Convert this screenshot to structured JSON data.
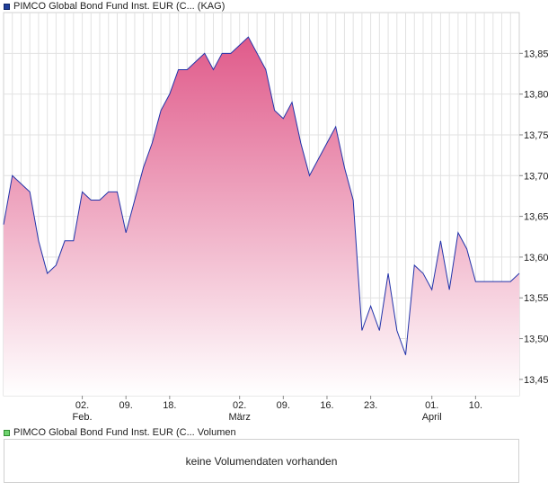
{
  "legend": {
    "price_label": "PIMCO Global Bond Fund Inst. EUR (C... (KAG)",
    "volume_label": "PIMCO Global Bond Fund Inst. EUR (C... Volumen"
  },
  "volume_panel": {
    "message": "keine Volumendaten vorhanden"
  },
  "colors": {
    "line": "#2233aa",
    "fill_top": "#e05a8a",
    "fill_bottom": "#ffffff",
    "grid": "#e2e2e2",
    "price_swatch": "#1f3f9a",
    "volume_swatch": "#6fd36f"
  },
  "chart_data": {
    "type": "area",
    "title": "PIMCO Global Bond Fund Inst. EUR (C... (KAG)",
    "ylabel": "",
    "xlabel": "",
    "ylim": [
      13.43,
      13.9
    ],
    "yticks": [
      "13,45",
      "13,50",
      "13,55",
      "13,60",
      "13,65",
      "13,70",
      "13,75",
      "13,80",
      "13,85"
    ],
    "yticks_value": [
      13.45,
      13.5,
      13.55,
      13.6,
      13.65,
      13.7,
      13.75,
      13.8,
      13.85
    ],
    "x_index_range": [
      0,
      59
    ],
    "xticks": [
      {
        "index": 9,
        "day": "02.",
        "month": "Feb."
      },
      {
        "index": 14,
        "day": "09.",
        "month": ""
      },
      {
        "index": 19,
        "day": "18.",
        "month": ""
      },
      {
        "index": 27,
        "day": "02.",
        "month": "März"
      },
      {
        "index": 32,
        "day": "09.",
        "month": ""
      },
      {
        "index": 37,
        "day": "16.",
        "month": ""
      },
      {
        "index": 42,
        "day": "23.",
        "month": ""
      },
      {
        "index": 49,
        "day": "01.",
        "month": "April"
      },
      {
        "index": 54,
        "day": "10.",
        "month": ""
      }
    ],
    "values": [
      13.64,
      13.7,
      13.69,
      13.68,
      13.62,
      13.58,
      13.59,
      13.62,
      13.62,
      13.68,
      13.67,
      13.67,
      13.68,
      13.68,
      13.63,
      13.67,
      13.71,
      13.74,
      13.78,
      13.8,
      13.83,
      13.83,
      13.84,
      13.85,
      13.83,
      13.85,
      13.85,
      13.86,
      13.87,
      13.85,
      13.83,
      13.78,
      13.77,
      13.79,
      13.74,
      13.7,
      13.72,
      13.74,
      13.76,
      13.71,
      13.67,
      13.51,
      13.54,
      13.51,
      13.58,
      13.51,
      13.48,
      13.59,
      13.58,
      13.56,
      13.62,
      13.56,
      13.63,
      13.61,
      13.57,
      13.57,
      13.57,
      13.57,
      13.57,
      13.58
    ]
  }
}
